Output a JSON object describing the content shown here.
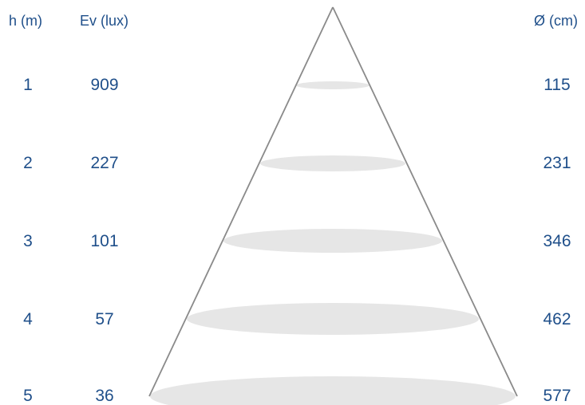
{
  "headers": {
    "height": "h (m)",
    "illuminance": "Ev (lux)",
    "diameter": "Ø (cm)"
  },
  "rows": [
    {
      "h": "1",
      "ev": "909",
      "d": "115"
    },
    {
      "h": "2",
      "ev": "227",
      "d": "231"
    },
    {
      "h": "3",
      "ev": "101",
      "d": "346"
    },
    {
      "h": "4",
      "ev": "57",
      "d": "462"
    },
    {
      "h": "5",
      "ev": "36",
      "d": "577"
    }
  ],
  "colors": {
    "text": "#1f4f8a",
    "cone_line": "#8a8a8a",
    "ellipse_fill": "#e6e6e6"
  }
}
